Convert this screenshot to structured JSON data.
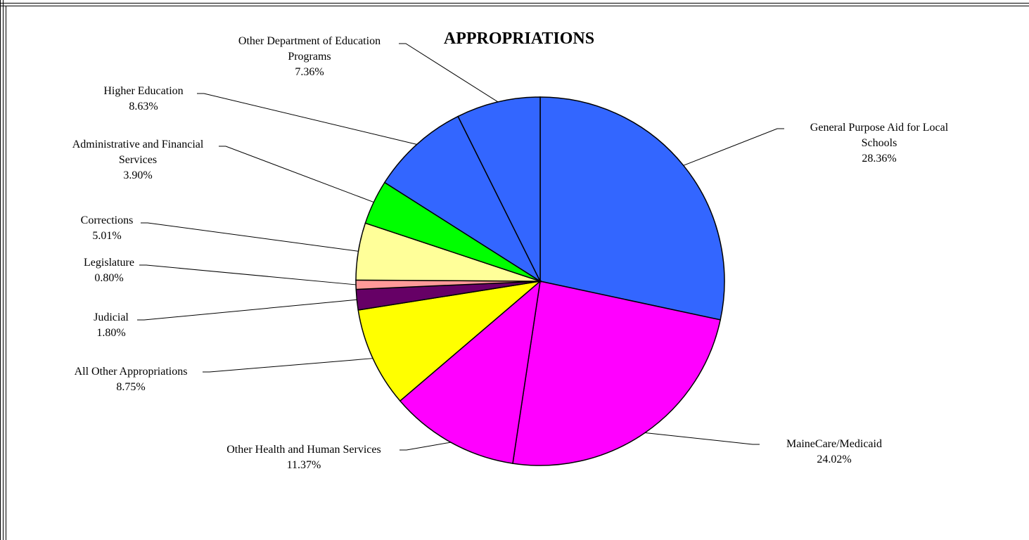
{
  "chart_data": {
    "type": "pie",
    "title": "APPROPRIATIONS",
    "slices": [
      {
        "name_lines": [
          "General Purpose Aid for Local",
          "Schools"
        ],
        "value": 28.36,
        "pct": "28.36%",
        "color": "#3366FF"
      },
      {
        "name_lines": [
          "MaineCare/Medicaid"
        ],
        "value": 24.02,
        "pct": "24.02%",
        "color": "#FF00FF"
      },
      {
        "name_lines": [
          "Other Health and Human Services"
        ],
        "value": 11.37,
        "pct": "11.37%",
        "color": "#FF00FF"
      },
      {
        "name_lines": [
          "All Other Appropriations"
        ],
        "value": 8.75,
        "pct": "8.75%",
        "color": "#FFFF00"
      },
      {
        "name_lines": [
          "Judicial"
        ],
        "value": 1.8,
        "pct": "1.80%",
        "color": "#660066"
      },
      {
        "name_lines": [
          "Legislature"
        ],
        "value": 0.8,
        "pct": "0.80%",
        "color": "#FF9999"
      },
      {
        "name_lines": [
          "Corrections"
        ],
        "value": 5.01,
        "pct": "5.01%",
        "color": "#FFFF99"
      },
      {
        "name_lines": [
          "Administrative and Financial",
          "Services"
        ],
        "value": 3.9,
        "pct": "3.90%",
        "color": "#00FF00"
      },
      {
        "name_lines": [
          "Higher Education"
        ],
        "value": 8.63,
        "pct": "8.63%",
        "color": "#3366FF"
      },
      {
        "name_lines": [
          "Other Department of Education",
          "Programs"
        ],
        "value": 7.36,
        "pct": "7.36%",
        "color": "#3366FF"
      }
    ]
  }
}
